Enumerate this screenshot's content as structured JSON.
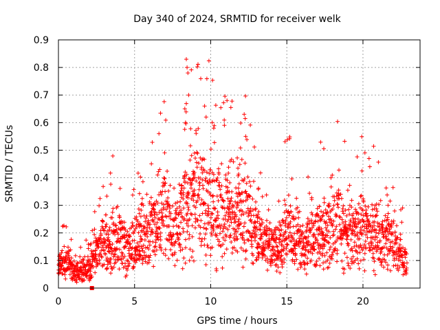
{
  "chart_data": {
    "type": "scatter",
    "title": "Day 340 of 2024, SRMTID for receiver welk",
    "xlabel": "GPS time / hours",
    "ylabel": "SRMTID / TECUs",
    "xlim": [
      0,
      23.75
    ],
    "ylim": [
      0,
      0.9
    ],
    "xticks": [
      0,
      5,
      10,
      15,
      20
    ],
    "xtick_labels": [
      "0",
      "5",
      "10",
      "15",
      "20"
    ],
    "yticks": [
      0,
      0.1,
      0.2,
      0.3,
      0.4,
      0.5,
      0.6,
      0.7,
      0.8,
      0.9
    ],
    "ytick_labels": [
      "0",
      "0.1",
      "0.2",
      "0.3",
      "0.4",
      "0.5",
      "0.6",
      "0.7",
      "0.8",
      "0.9"
    ],
    "grid": true,
    "marker": "+",
    "marker_color": "#ff0000",
    "series_trend": {
      "name": "SRMTID",
      "x": [
        0,
        0.5,
        1,
        1.5,
        2,
        2.5,
        3,
        3.5,
        4,
        4.5,
        5,
        5.5,
        6,
        6.5,
        7,
        7.5,
        8,
        8.5,
        9,
        9.5,
        10,
        10.5,
        11,
        11.5,
        12,
        12.5,
        13,
        13.5,
        14,
        14.5,
        15,
        15.5,
        16,
        16.5,
        17,
        17.5,
        18,
        18.5,
        19,
        19.5,
        20,
        20.5,
        21,
        21.5,
        22,
        22.5,
        22.9
      ],
      "y": [
        0.08,
        0.09,
        0.06,
        0.06,
        0.07,
        0.12,
        0.17,
        0.18,
        0.17,
        0.14,
        0.17,
        0.19,
        0.2,
        0.22,
        0.27,
        0.2,
        0.25,
        0.3,
        0.33,
        0.34,
        0.3,
        0.28,
        0.27,
        0.26,
        0.28,
        0.27,
        0.2,
        0.16,
        0.14,
        0.16,
        0.22,
        0.2,
        0.16,
        0.17,
        0.2,
        0.2,
        0.24,
        0.22,
        0.2,
        0.19,
        0.21,
        0.2,
        0.19,
        0.18,
        0.18,
        0.12,
        0.08
      ]
    },
    "series_outliers": {
      "x": [
        6.6,
        6.65,
        8.4,
        8.45,
        8.5,
        8.55,
        8.3,
        8.35,
        9.6,
        9.7,
        10.1,
        10.2,
        10.9,
        12.2,
        12.3,
        20.4,
        20.45,
        17.9
      ],
      "y": [
        0.56,
        0.43,
        0.83,
        0.8,
        0.78,
        0.7,
        0.65,
        0.6,
        0.66,
        0.62,
        0.6,
        0.58,
        0.59,
        0.63,
        0.55,
        0.47,
        0.44,
        0.4
      ]
    },
    "series_marker_square": {
      "x": [
        2.2
      ],
      "y": [
        0
      ]
    }
  }
}
